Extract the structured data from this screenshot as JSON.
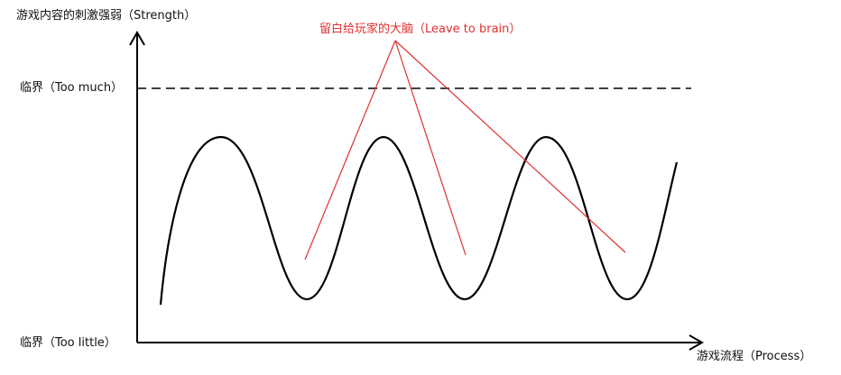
{
  "labels": {
    "y_axis": "游戏内容的刺激强弱（Strength）",
    "x_axis": "游戏流程（Process）",
    "top_threshold": "临界（Too much）",
    "bottom_threshold": "临界（Too little）",
    "annotation": "留白给玩家的大脑（Leave to brain）"
  },
  "colors": {
    "axis": "#000000",
    "curve": "#000000",
    "threshold_line": "#000000",
    "annotation": "#e03030"
  }
}
